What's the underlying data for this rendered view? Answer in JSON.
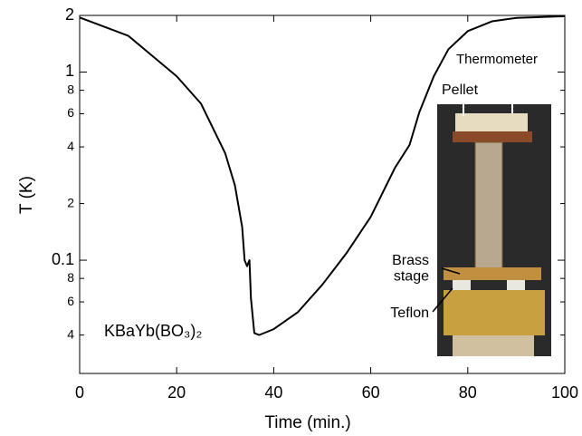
{
  "chart_data": {
    "type": "line",
    "x_label": "Time (min.)",
    "y_label": "T (K)",
    "annotation": "KBaYb(BO₃)₂",
    "photo_labels": [
      "Thermometer",
      "Pellet",
      "Brass stage",
      "Teflon"
    ],
    "log_y": true,
    "xlim": [
      0,
      100
    ],
    "xticks": [
      0,
      20,
      40,
      60,
      80,
      100
    ],
    "ylim": [
      0.025,
      2
    ],
    "yticks": [
      {
        "value": 0.04,
        "label": "4"
      },
      {
        "value": 0.06,
        "label": "6"
      },
      {
        "value": 0.08,
        "label": "8"
      },
      0.1,
      {
        "value": 0.2,
        "label": "2"
      },
      {
        "value": 0.4,
        "label": "4"
      },
      {
        "value": 0.6,
        "label": "6"
      },
      {
        "value": 0.8,
        "label": "8"
      },
      1,
      2
    ],
    "series": [
      {
        "color": "#000000",
        "x": [
          0,
          10,
          20,
          25,
          30,
          32,
          33.5,
          34,
          34.5,
          35,
          35.3,
          36,
          37,
          40,
          45,
          50,
          55,
          60,
          65,
          68,
          70,
          73,
          76,
          80,
          85,
          90,
          100
        ],
        "values": [
          1.95,
          1.56,
          0.95,
          0.68,
          0.37,
          0.25,
          0.15,
          0.1,
          0.093,
          0.1,
          0.063,
          0.041,
          0.04,
          0.043,
          0.053,
          0.074,
          0.109,
          0.17,
          0.31,
          0.41,
          0.61,
          0.95,
          1.32,
          1.65,
          1.86,
          1.94,
          1.98
        ]
      }
    ]
  }
}
